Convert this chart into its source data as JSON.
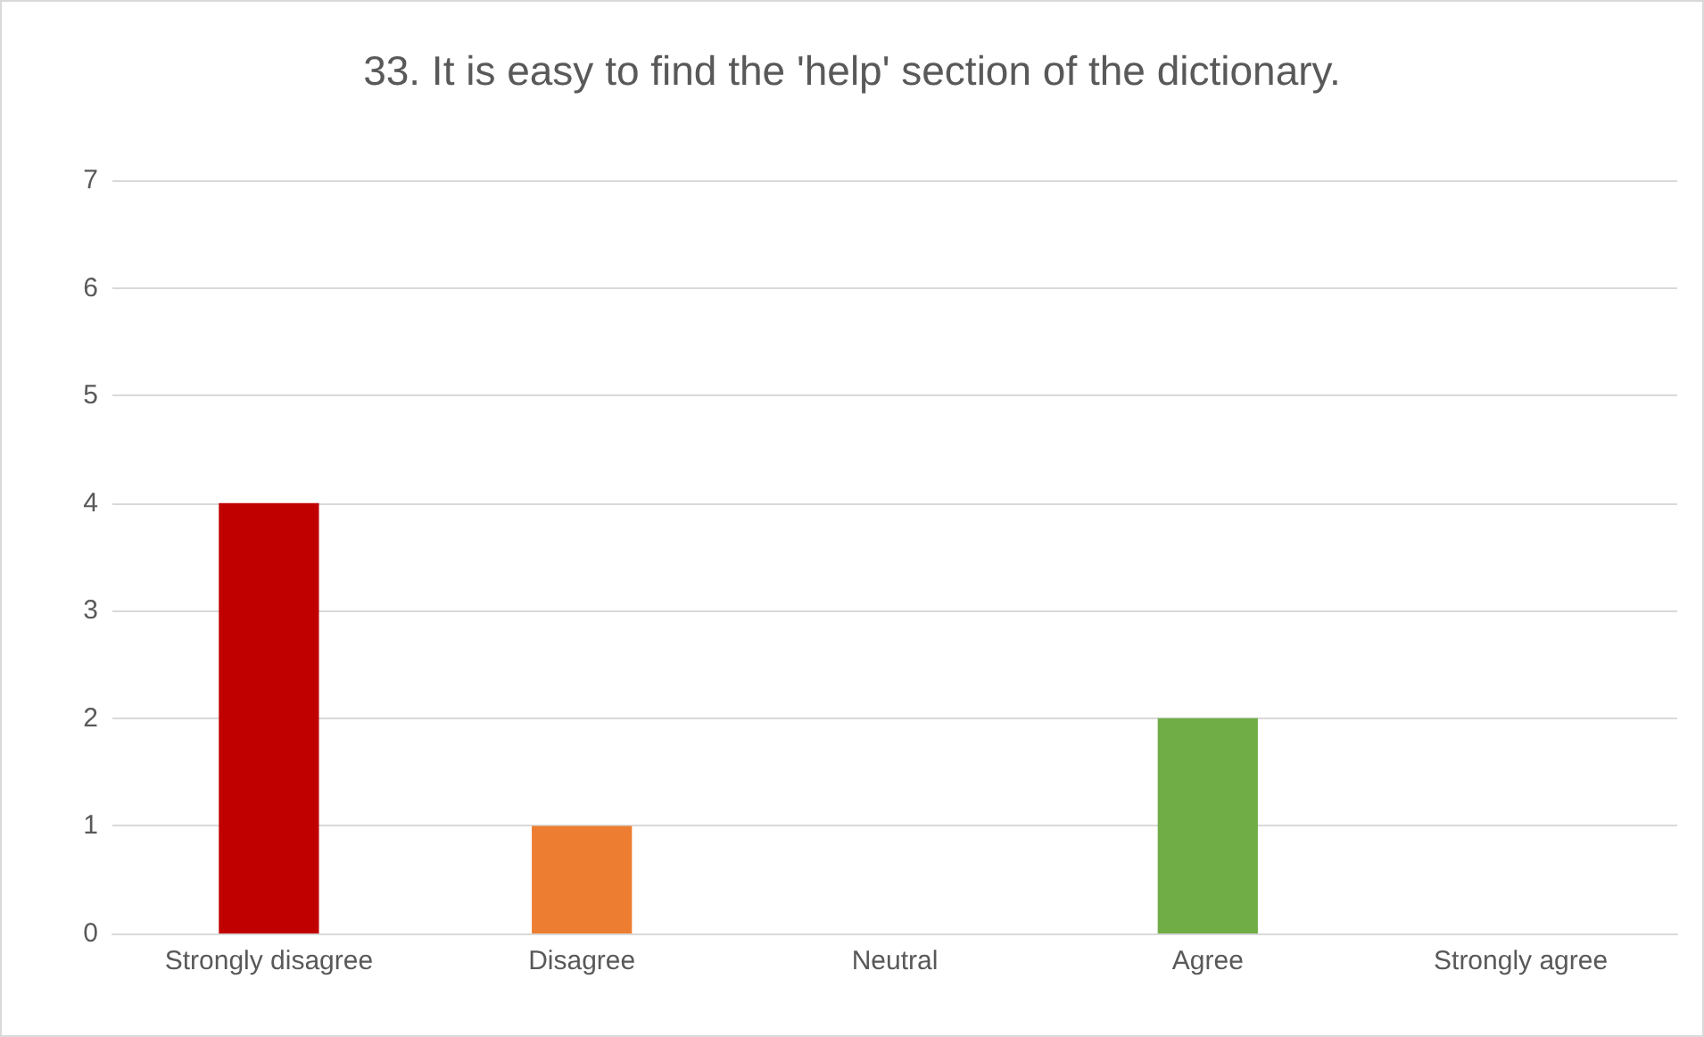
{
  "chart_data": {
    "type": "bar",
    "title": "33. It is easy to find the 'help' section of the dictionary.",
    "categories": [
      "Strongly disagree",
      "Disagree",
      "Neutral",
      "Agree",
      "Strongly agree"
    ],
    "values": [
      4,
      1,
      0,
      2,
      0
    ],
    "colors": [
      "#c00000",
      "#ed7d31",
      "#ffc000",
      "#70ad47",
      "#00b050"
    ],
    "ylim": [
      0,
      7
    ],
    "yticks": [
      0,
      1,
      2,
      3,
      4,
      5,
      6,
      7
    ],
    "grid": "y"
  }
}
